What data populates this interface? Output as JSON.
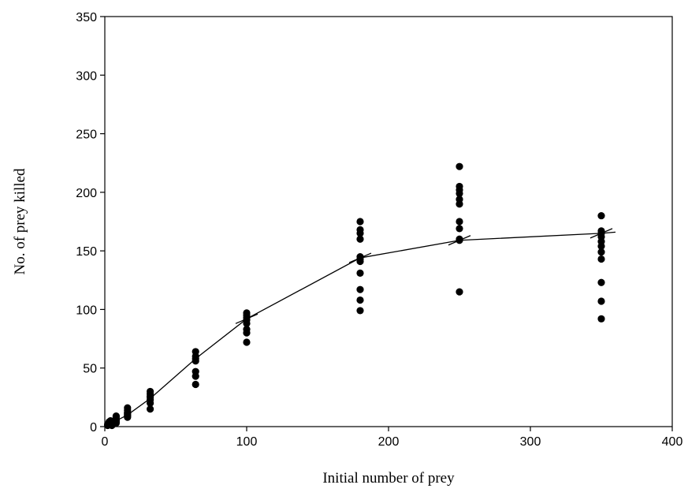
{
  "chart_data": {
    "type": "scatter",
    "title": "",
    "xlabel": "Initial number of prey",
    "ylabel": "No. of prey killed",
    "xlim": [
      0,
      400
    ],
    "ylim": [
      0,
      350
    ],
    "xticks": [
      0,
      100,
      200,
      300,
      400
    ],
    "yticks": [
      0,
      50,
      100,
      150,
      200,
      250,
      300,
      350
    ],
    "grid": false,
    "legend": "none",
    "colors": {
      "points": "#000000",
      "line": "#000000",
      "axes": "#000000"
    },
    "points": [
      [
        2,
        1
      ],
      [
        2,
        2
      ],
      [
        3,
        3
      ],
      [
        3,
        4
      ],
      [
        4,
        2
      ],
      [
        4,
        5
      ],
      [
        5,
        1
      ],
      [
        5,
        3
      ],
      [
        8,
        3
      ],
      [
        8,
        4
      ],
      [
        8,
        5
      ],
      [
        8,
        6
      ],
      [
        8,
        8
      ],
      [
        8,
        9
      ],
      [
        16,
        8
      ],
      [
        16,
        9
      ],
      [
        16,
        10
      ],
      [
        16,
        11
      ],
      [
        16,
        12
      ],
      [
        16,
        14
      ],
      [
        16,
        16
      ],
      [
        32,
        15
      ],
      [
        32,
        20
      ],
      [
        32,
        23
      ],
      [
        32,
        25
      ],
      [
        32,
        26
      ],
      [
        32,
        28
      ],
      [
        32,
        30
      ],
      [
        64,
        36
      ],
      [
        64,
        43
      ],
      [
        64,
        47
      ],
      [
        64,
        56
      ],
      [
        64,
        58
      ],
      [
        64,
        60
      ],
      [
        64,
        64
      ],
      [
        100,
        72
      ],
      [
        100,
        80
      ],
      [
        100,
        83
      ],
      [
        100,
        88
      ],
      [
        100,
        91
      ],
      [
        100,
        93
      ],
      [
        100,
        95
      ],
      [
        100,
        97
      ],
      [
        180,
        99
      ],
      [
        180,
        108
      ],
      [
        180,
        117
      ],
      [
        180,
        131
      ],
      [
        180,
        141
      ],
      [
        180,
        143
      ],
      [
        180,
        145
      ],
      [
        180,
        160
      ],
      [
        180,
        165
      ],
      [
        180,
        168
      ],
      [
        180,
        175
      ],
      [
        250,
        115
      ],
      [
        250,
        159
      ],
      [
        250,
        160
      ],
      [
        250,
        169
      ],
      [
        250,
        175
      ],
      [
        250,
        190
      ],
      [
        250,
        194
      ],
      [
        250,
        199
      ],
      [
        250,
        202
      ],
      [
        250,
        205
      ],
      [
        250,
        222
      ],
      [
        350,
        92
      ],
      [
        350,
        107
      ],
      [
        350,
        123
      ],
      [
        350,
        143
      ],
      [
        350,
        149
      ],
      [
        350,
        154
      ],
      [
        350,
        158
      ],
      [
        350,
        162
      ],
      [
        350,
        165
      ],
      [
        350,
        167
      ],
      [
        350,
        180
      ]
    ],
    "fit_line": {
      "x": [
        0,
        8,
        16,
        32,
        64,
        100,
        180,
        250,
        350,
        360
      ],
      "y": [
        0,
        5,
        10,
        24,
        58,
        92,
        144,
        159,
        165,
        166
      ]
    },
    "fit_markers": {
      "x": [
        100,
        180,
        250,
        350
      ],
      "y": [
        92,
        144,
        159,
        165
      ]
    }
  }
}
